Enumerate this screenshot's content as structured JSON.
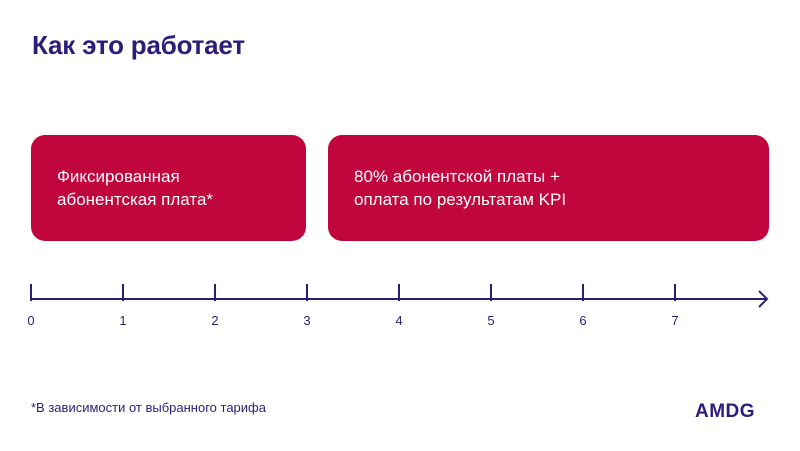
{
  "title": "Как это работает",
  "boxes": [
    {
      "lines": [
        "Фиксированная",
        "абонентская плата*"
      ]
    },
    {
      "lines": [
        "80% абонентской платы +",
        "оплата по результатам KPI"
      ]
    }
  ],
  "timeline": {
    "ticks": [
      "0",
      "1",
      "2",
      "3",
      "4",
      "5",
      "6",
      "7"
    ]
  },
  "footnote": "*В зависимости от выбранного тарифа",
  "logo": "AMDG",
  "colors": {
    "primary": "#2b1e7a",
    "accent": "#c0063c"
  }
}
